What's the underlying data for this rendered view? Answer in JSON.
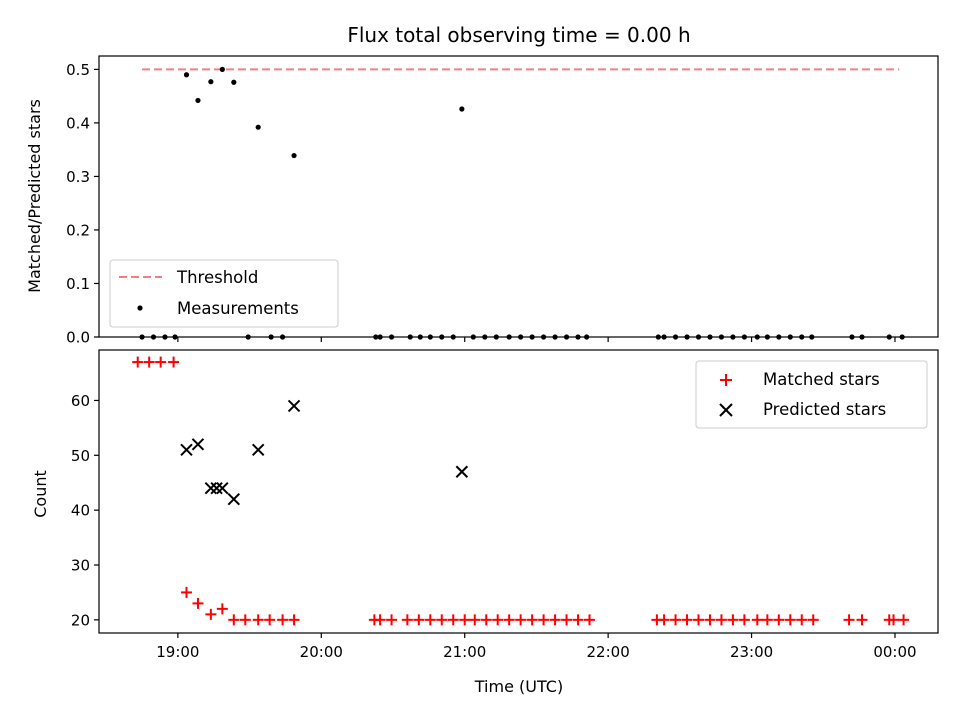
{
  "chart_data": {
    "type": "scatter",
    "title": "Flux total observing time = 0.00 h",
    "xlabel": "Time (UTC)",
    "x_tick_labels": [
      "19:00",
      "20:00",
      "21:00",
      "22:00",
      "23:00",
      "00:00"
    ],
    "x_ticks_hours": [
      19,
      20,
      21,
      22,
      23,
      24
    ],
    "xlim": [
      18.45,
      24.3
    ],
    "panels": [
      {
        "id": "ratio",
        "ylabel": "Matched/Predicted stars",
        "ylim": [
          0,
          0.525
        ],
        "yticks": [
          0.0,
          0.1,
          0.2,
          0.3,
          0.4,
          0.5
        ],
        "y_tick_labels": [
          "0.0",
          "0.1",
          "0.2",
          "0.3",
          "0.4",
          "0.5"
        ],
        "legend_position": "lower-left",
        "series": [
          {
            "name": "Threshold",
            "kind": "line",
            "color": "#f08080",
            "x": [
              18.75,
              24.03
            ],
            "y": [
              0.5,
              0.5
            ]
          },
          {
            "name": "Measurements",
            "kind": "scatter",
            "color": "#000000",
            "x": [
              18.75,
              18.83,
              18.91,
              18.98,
              19.06,
              19.14,
              19.23,
              19.31,
              19.39,
              19.49,
              19.56,
              19.65,
              19.73,
              19.81,
              20.38,
              20.41,
              20.49,
              20.62,
              20.69,
              20.76,
              20.84,
              20.92,
              20.98,
              21.06,
              21.14,
              21.22,
              21.31,
              21.39,
              21.47,
              21.55,
              21.63,
              21.71,
              21.79,
              21.85,
              22.35,
              22.39,
              22.47,
              22.55,
              22.63,
              22.71,
              22.79,
              22.87,
              22.95,
              23.04,
              23.11,
              23.19,
              23.27,
              23.35,
              23.42,
              23.7,
              23.77,
              23.96,
              24.05
            ],
            "y": [
              0,
              0,
              0,
              0,
              0.49,
              0.442,
              0.477,
              0.5,
              0.476,
              0,
              0.392,
              0,
              0,
              0.339,
              0,
              0,
              0,
              0,
              0,
              0,
              0,
              0,
              0.426,
              0,
              0,
              0,
              0,
              0,
              0,
              0,
              0,
              0,
              0,
              0,
              0,
              0,
              0,
              0,
              0,
              0,
              0,
              0,
              0,
              0,
              0,
              0,
              0,
              0,
              0,
              0,
              0,
              0,
              0
            ]
          }
        ]
      },
      {
        "id": "count",
        "ylabel": "Count",
        "ylim": [
          17.6,
          69.2
        ],
        "yticks": [
          20,
          30,
          40,
          50,
          60
        ],
        "y_tick_labels": [
          "20",
          "30",
          "40",
          "50",
          "60"
        ],
        "legend_position": "top-right",
        "series": [
          {
            "name": "Matched stars",
            "kind": "plus",
            "color": "#ff0000",
            "x": [
              18.72,
              18.8,
              18.88,
              18.97,
              19.06,
              19.14,
              19.23,
              19.31,
              19.39,
              19.47,
              19.56,
              19.64,
              19.73,
              19.81,
              20.37,
              20.41,
              20.49,
              20.6,
              20.68,
              20.76,
              20.84,
              20.92,
              21.0,
              21.07,
              21.15,
              21.23,
              21.31,
              21.39,
              21.47,
              21.55,
              21.63,
              21.71,
              21.79,
              21.87,
              22.34,
              22.39,
              22.47,
              22.55,
              22.63,
              22.71,
              22.79,
              22.87,
              22.95,
              23.04,
              23.11,
              23.19,
              23.27,
              23.35,
              23.43,
              23.68,
              23.77,
              23.96,
              23.99,
              24.06
            ],
            "y": [
              67,
              67,
              67,
              67,
              25,
              23,
              21,
              22,
              20,
              20,
              20,
              20,
              20,
              20,
              20,
              20,
              20,
              20,
              20,
              20,
              20,
              20,
              20,
              20,
              20,
              20,
              20,
              20,
              20,
              20,
              20,
              20,
              20,
              20,
              20,
              20,
              20,
              20,
              20,
              20,
              20,
              20,
              20,
              20,
              20,
              20,
              20,
              20,
              20,
              20,
              20,
              20,
              20,
              20
            ]
          },
          {
            "name": "Predicted stars",
            "kind": "x",
            "color": "#000000",
            "x": [
              19.06,
              19.14,
              19.23,
              19.27,
              19.31,
              19.39,
              19.56,
              19.81,
              20.98
            ],
            "y": [
              51,
              52,
              44,
              44,
              44,
              42,
              51,
              59,
              47
            ]
          }
        ]
      }
    ]
  }
}
